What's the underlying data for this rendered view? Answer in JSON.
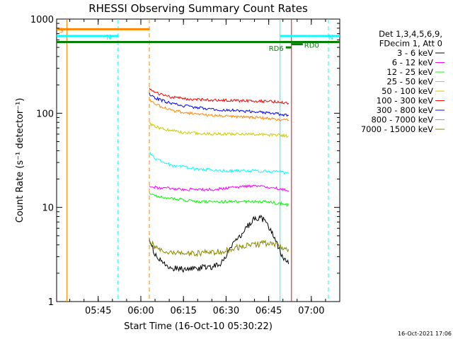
{
  "chart_data": {
    "type": "line",
    "title": "RHESSI Observing Summary Count Rates",
    "xlabel": "Start Time (16-Oct-10 05:30:22)",
    "ylabel": "Count Rate (s⁻¹ detector⁻¹)",
    "yscale": "log",
    "ylim": [
      1,
      1000
    ],
    "xlim": [
      "05:30:22",
      "07:10:00"
    ],
    "x_ticks": [
      "05:45",
      "06:00",
      "06:15",
      "06:30",
      "06:45",
      "07:00"
    ],
    "y_ticks": [
      "1",
      "10",
      "100",
      "1000"
    ],
    "grid": false,
    "legend_position": "right",
    "legend_header": [
      "Det 1,3,4,5,6,9,",
      "FDecim 1, Att 0"
    ],
    "series": [
      {
        "name": "3 - 6 keV",
        "color": "#000000",
        "x": [
          "06:03",
          "06:05",
          "06:08",
          "06:10",
          "06:14",
          "06:18",
          "06:22",
          "06:25",
          "06:28",
          "06:30",
          "06:32",
          "06:35",
          "06:38",
          "06:40",
          "06:42",
          "06:44",
          "06:46",
          "06:48",
          "06:50",
          "06:52"
        ],
        "y": [
          4.5,
          3.2,
          2.6,
          2.3,
          2.2,
          2.2,
          2.3,
          2.3,
          2.5,
          3.0,
          4.0,
          5.0,
          6.5,
          7.5,
          8.0,
          7.0,
          5.5,
          4.0,
          3.0,
          2.5
        ]
      },
      {
        "name": "6 - 12 keV",
        "color": "#ff00ff",
        "x": [
          "06:03",
          "06:06",
          "06:10",
          "06:15",
          "06:20",
          "06:25",
          "06:30",
          "06:35",
          "06:40",
          "06:45",
          "06:48",
          "06:50",
          "06:52"
        ],
        "y": [
          17,
          16,
          16,
          15.5,
          15.5,
          15.5,
          16,
          16.5,
          17,
          16.5,
          16,
          15.5,
          15
        ]
      },
      {
        "name": "12 - 25 keV",
        "color": "#00ff00",
        "x": [
          "06:03",
          "06:06",
          "06:10",
          "06:15",
          "06:20",
          "06:25",
          "06:30",
          "06:35",
          "06:40",
          "06:45",
          "06:48",
          "06:50",
          "06:52"
        ],
        "y": [
          14,
          13,
          12.5,
          12,
          11.5,
          11.5,
          11.5,
          11.5,
          11.5,
          11.5,
          11,
          11,
          10.5
        ]
      },
      {
        "name": "25 - 50 keV",
        "color": "#00ffff",
        "x": [
          "06:03",
          "06:05",
          "06:08",
          "06:11",
          "06:15",
          "06:20",
          "06:25",
          "06:30",
          "06:35",
          "06:40",
          "06:45",
          "06:48",
          "06:50",
          "06:52"
        ],
        "y": [
          38,
          33,
          30,
          28,
          27,
          25.5,
          25,
          24.5,
          24.5,
          24.5,
          24,
          24,
          23.5,
          23
        ]
      },
      {
        "name": "50 - 100 keV",
        "color": "#cccc00",
        "x": [
          "06:03",
          "06:05",
          "06:08",
          "06:11",
          "06:15",
          "06:20",
          "06:25",
          "06:30",
          "06:35",
          "06:40",
          "06:45",
          "06:48",
          "06:50",
          "06:52"
        ],
        "y": [
          78,
          72,
          68,
          65,
          62,
          61,
          60,
          60,
          60,
          60,
          59,
          59,
          58,
          57
        ]
      },
      {
        "name": "100 - 300 keV",
        "color": "#ff0000",
        "x": [
          "06:03",
          "06:05",
          "06:08",
          "06:11",
          "06:15",
          "06:20",
          "06:25",
          "06:30",
          "06:35",
          "06:40",
          "06:45",
          "06:48",
          "06:50",
          "06:52"
        ],
        "y": [
          180,
          165,
          155,
          148,
          143,
          140,
          138,
          137,
          136,
          135,
          134,
          132,
          130,
          128
        ]
      },
      {
        "name": "300 - 800 keV",
        "color": "#0000ff",
        "x": [
          "06:03",
          "06:05",
          "06:08",
          "06:11",
          "06:15",
          "06:20",
          "06:25",
          "06:30",
          "06:35",
          "06:40",
          "06:45",
          "06:48",
          "06:50",
          "06:52"
        ],
        "y": [
          160,
          145,
          135,
          126,
          120,
          115,
          110,
          108,
          106,
          104,
          101,
          99,
          96,
          94
        ]
      },
      {
        "name": "800 - 7000 keV",
        "color": "#ff8800",
        "x": [
          "06:03",
          "06:05",
          "06:08",
          "06:11",
          "06:15",
          "06:20",
          "06:25",
          "06:30",
          "06:35",
          "06:40",
          "06:45",
          "06:48",
          "06:50",
          "06:52"
        ],
        "y": [
          140,
          125,
          115,
          108,
          102,
          98,
          95,
          93,
          91,
          90,
          88,
          86,
          85,
          84
        ]
      },
      {
        "name": "7000 - 15000 keV",
        "color": "#888800",
        "x": [
          "06:03",
          "06:05",
          "06:08",
          "06:10",
          "06:14",
          "06:18",
          "06:22",
          "06:25",
          "06:28",
          "06:30",
          "06:35",
          "06:40",
          "06:45",
          "06:48",
          "06:50",
          "06:52"
        ],
        "y": [
          4.5,
          3.8,
          3.4,
          3.3,
          3.2,
          3.2,
          3.3,
          3.3,
          3.4,
          3.5,
          3.8,
          4.0,
          4.2,
          4.0,
          3.8,
          3.6
        ]
      }
    ],
    "vertical_markers": [
      {
        "time": "05:34",
        "color": "#ff8800",
        "style": "solid"
      },
      {
        "time": "05:52",
        "color": "#00ffff",
        "style": "dashed"
      },
      {
        "time": "06:03",
        "color": "#ff8800",
        "style": "dashed"
      },
      {
        "time": "06:49",
        "color": "#00ffff",
        "style": "solid"
      },
      {
        "time": "06:53",
        "color": "#ff0000",
        "style": "solid"
      },
      {
        "time": "07:06",
        "color": "#00ffff",
        "style": "dashed"
      }
    ],
    "flag_bars": [
      {
        "label": "S",
        "color": "#ff8800",
        "start": "05:30:22",
        "end": "06:03",
        "level": 780
      },
      {
        "label": "N",
        "color": "#00ffff",
        "start": "05:30:22",
        "end": "05:52",
        "level": 660
      },
      {
        "label": "N",
        "color": "#00ffff",
        "start": "06:49",
        "end": "07:10",
        "level": 660
      },
      {
        "label": "",
        "color": "#008000",
        "start": "05:30:22",
        "end": "07:10",
        "level": 570
      },
      {
        "label": "RD6",
        "color": "#008000",
        "start": "06:51",
        "end": "06:53",
        "level": 500
      },
      {
        "label": "RD0",
        "color": "#008000",
        "start": "06:53",
        "end": "06:57",
        "level": 540
      }
    ],
    "timestamp": "16-Oct-2021 17:06"
  }
}
